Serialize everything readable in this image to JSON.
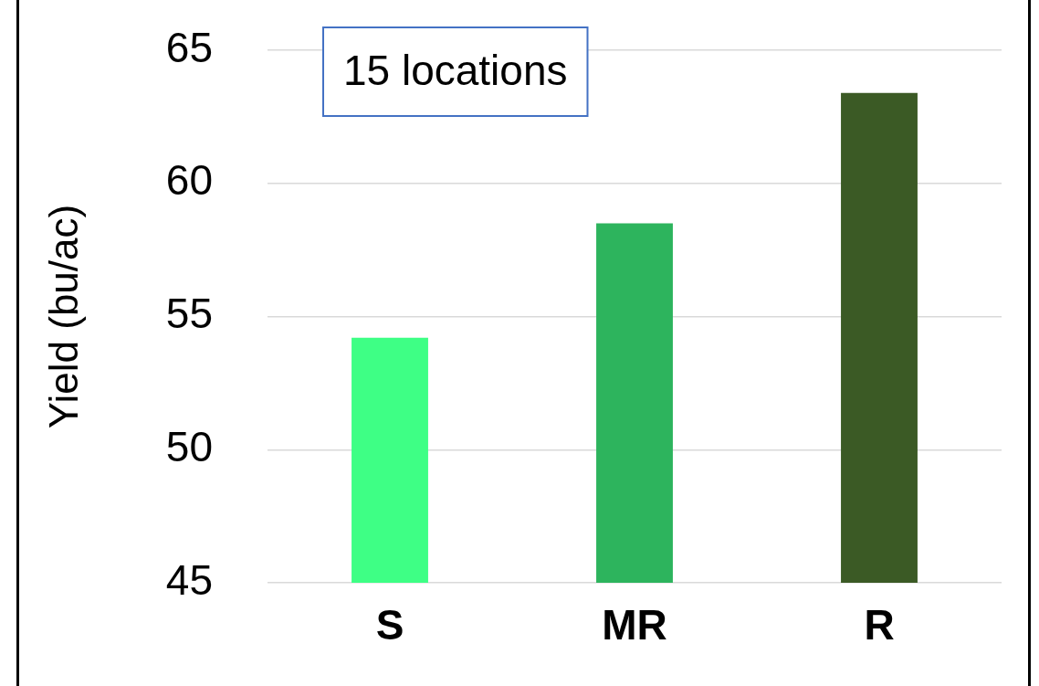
{
  "chart_data": {
    "type": "bar",
    "ylabel": "Yield (bu/ac)",
    "categories": [
      "S",
      "MR",
      "R"
    ],
    "values": [
      54.2,
      58.5,
      63.4
    ],
    "colors": [
      "#3eff85",
      "#2db45d",
      "#3b5a25"
    ],
    "ylim": [
      45,
      65
    ],
    "yticks": [
      45,
      50,
      55,
      60,
      65
    ],
    "grid": "y",
    "annotations": [
      "15 locations"
    ]
  }
}
